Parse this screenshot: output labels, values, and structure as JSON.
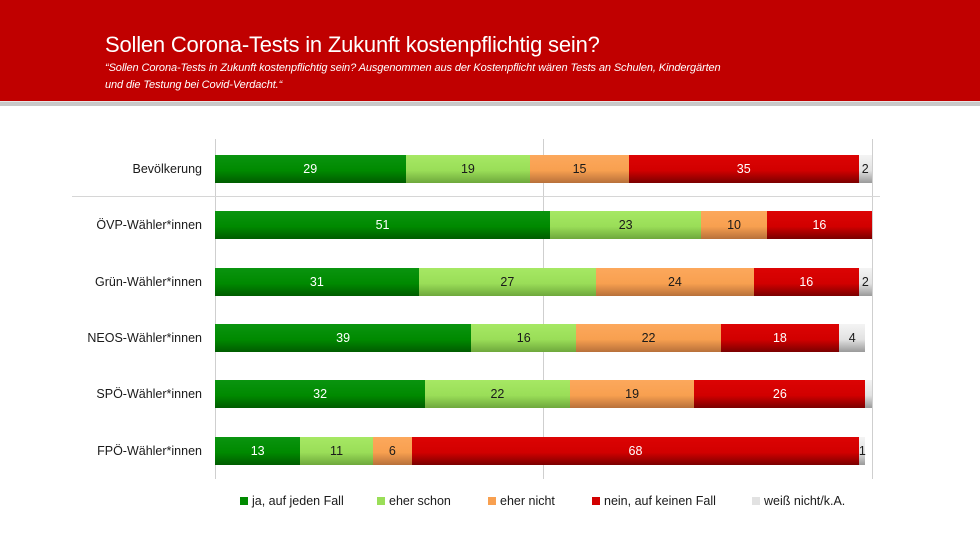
{
  "header": {
    "title": "Sollen Corona-Tests in Zukunft kostenpflichtig sein?",
    "subtitle_line1": "“Sollen Corona-Tests in Zukunft kostenpflichtig sein? Ausgenommen aus der Kostenpflicht wären Tests an Schulen, Kindergärten",
    "subtitle_line2": "und die Testung bei Covid-Verdacht.“"
  },
  "colors": {
    "header_bg": "#c00000",
    "ja_auf_jeden_fall": "#008a00",
    "eher_schon": "#9ade58",
    "eher_nicht": "#f8a050",
    "nein_auf_keinen_fall": "#d20000",
    "weiss_nicht_ka": "#e2e2e2"
  },
  "legend": [
    {
      "label": "ja, auf jeden Fall",
      "color": "#008a00"
    },
    {
      "label": "eher schon",
      "color": "#9ade58"
    },
    {
      "label": "eher nicht",
      "color": "#f8a050"
    },
    {
      "label": "nein, auf keinen Fall",
      "color": "#d20000"
    },
    {
      "label": "weiß nicht/k.A.",
      "color": "#e2e2e2"
    }
  ],
  "chart_data": {
    "type": "bar",
    "orientation": "horizontal",
    "stacked": true,
    "title": "Sollen Corona-Tests in Zukunft kostenpflichtig sein?",
    "subtitle": "“Sollen Corona-Tests in Zukunft kostenpflichtig sein? Ausgenommen aus der Kostenpflicht wären Tests an Schulen, Kindergärten und die Testung bei Covid-Verdacht.“",
    "xlabel": "",
    "ylabel": "",
    "xlim": [
      0,
      100
    ],
    "unit": "%",
    "grid": true,
    "legend_position": "bottom",
    "categories": [
      "Bevölkerung",
      "ÖVP-Wähler*innen",
      "Grün-Wähler*innen",
      "NEOS-Wähler*innen",
      "SPÖ-Wähler*innen",
      "FPÖ-Wähler*innen"
    ],
    "series": [
      {
        "name": "ja, auf jeden Fall",
        "values": [
          29,
          51,
          31,
          39,
          32,
          13
        ]
      },
      {
        "name": "eher schon",
        "values": [
          19,
          23,
          27,
          16,
          22,
          11
        ]
      },
      {
        "name": "eher nicht",
        "values": [
          15,
          10,
          24,
          22,
          19,
          6
        ]
      },
      {
        "name": "nein, auf keinen Fall",
        "values": [
          35,
          16,
          16,
          18,
          26,
          68
        ]
      },
      {
        "name": "weiß nicht/k.A.",
        "values": [
          2,
          0,
          2,
          4,
          1,
          1
        ]
      }
    ],
    "value_labels": [
      [
        "29",
        "19",
        "15",
        "35",
        "2"
      ],
      [
        "51",
        "23",
        "10",
        "16",
        ""
      ],
      [
        "31",
        "27",
        "24",
        "16",
        "2"
      ],
      [
        "39",
        "16",
        "22",
        "18",
        "4"
      ],
      [
        "32",
        "22",
        "19",
        "26",
        ""
      ],
      [
        "13",
        "11",
        "6",
        "68",
        "1"
      ]
    ]
  }
}
